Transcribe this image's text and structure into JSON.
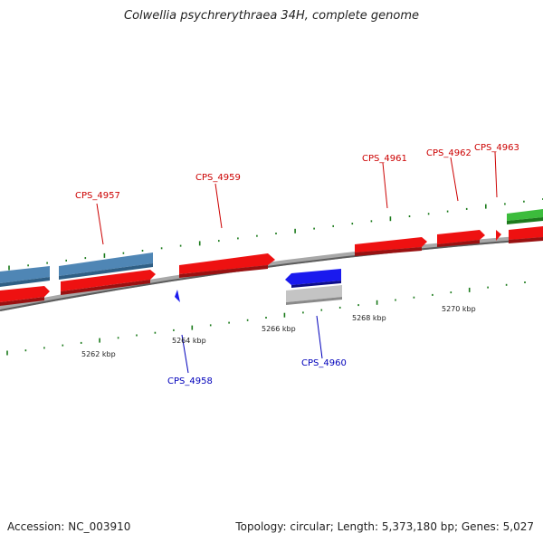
{
  "title": "Colwellia psychrerythraea 34H, complete genome",
  "footer": {
    "accession": "Accession: NC_003910",
    "summary": "Topology: circular; Length: 5,373,180 bp; Genes: 5,027"
  },
  "colors": {
    "forward_gene": "#ee1111",
    "reverse_gene": "#1a1aee",
    "forward_label": "#cc0000",
    "reverse_label": "#0000bb",
    "steelblue_feature": "#4f86b5",
    "green_feature": "#2eaa2e",
    "gray_feature": "#b8b8b8",
    "ticks": "#1a7a1a",
    "backbone": "#888888"
  },
  "genes": [
    {
      "id": "CPS_4957",
      "strand": "+"
    },
    {
      "id": "CPS_4958",
      "strand": "-"
    },
    {
      "id": "CPS_4959",
      "strand": "+"
    },
    {
      "id": "CPS_4960",
      "strand": "-"
    },
    {
      "id": "CPS_4961",
      "strand": "+"
    },
    {
      "id": "CPS_4962",
      "strand": "+"
    },
    {
      "id": "CPS_4963",
      "strand": "+"
    }
  ],
  "scale_labels": [
    "5262 kbp",
    "5264 kbp",
    "5266 kbp",
    "5268 kbp",
    "5270 kbp"
  ]
}
